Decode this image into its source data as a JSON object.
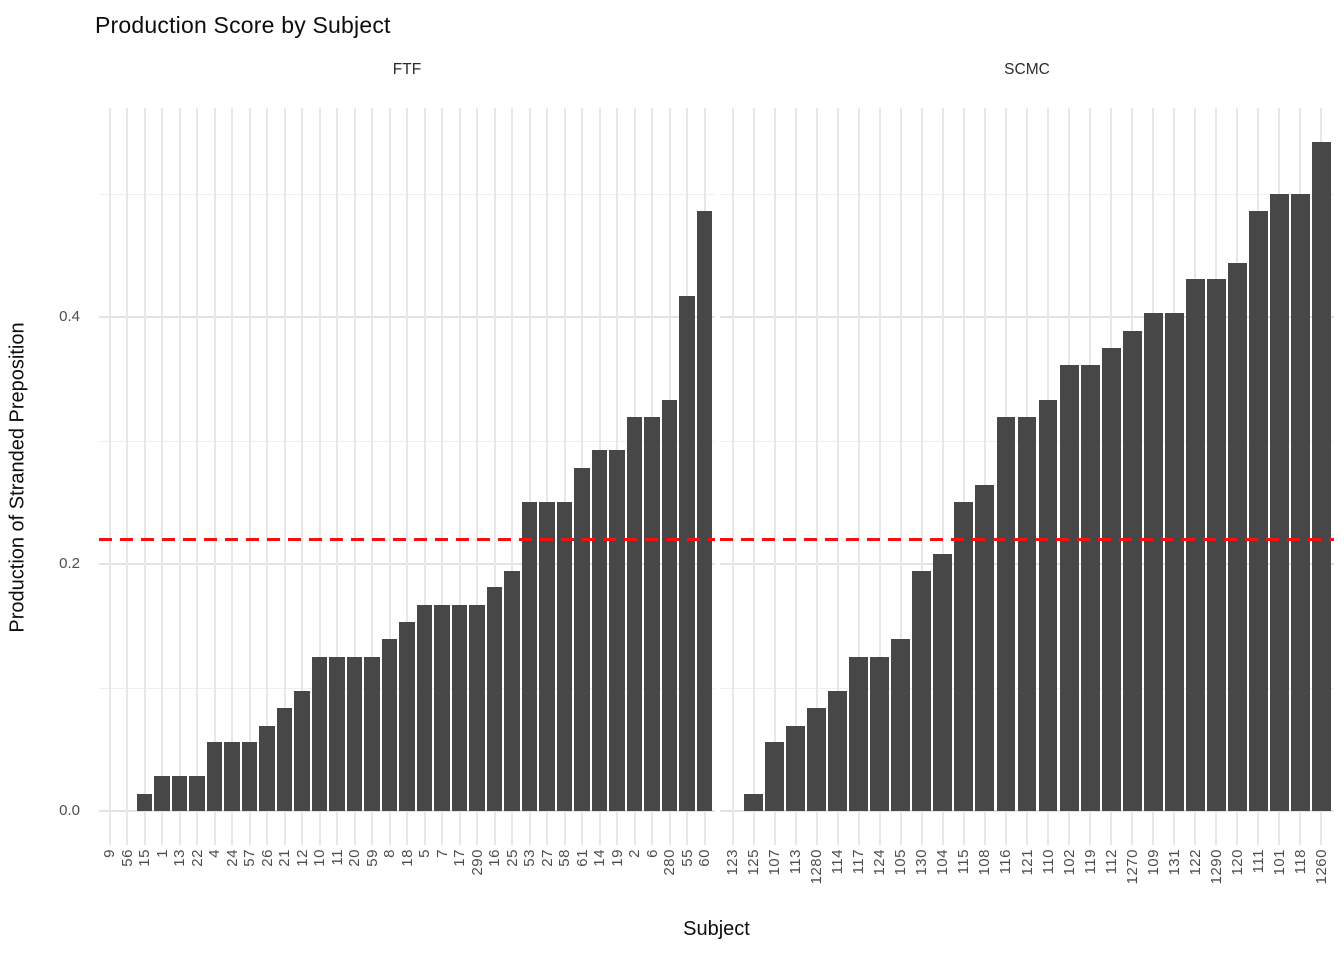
{
  "title": "Production Score by Subject",
  "x_axis_title": "Subject",
  "y_axis_title": "Production of Stranded Preposition",
  "y_ticks": [
    {
      "value": 0.0,
      "label": "0.0"
    },
    {
      "value": 0.2,
      "label": "0.2"
    },
    {
      "value": 0.4,
      "label": "0.4"
    }
  ],
  "reference_line": {
    "value": 0.22,
    "color": "#ff0000",
    "style": "dashed"
  },
  "bar_color": "#474747",
  "gridline_color": "#e7e7e7",
  "chart_data": {
    "type": "bar",
    "title": "Production Score by Subject",
    "xlabel": "Subject",
    "ylabel": "Production of Stranded Preposition",
    "ylim": [
      -0.027,
      0.569
    ],
    "grid": true,
    "sorted": "ascending within facet",
    "y_major_gridlines": [
      0.0,
      0.2,
      0.4
    ],
    "y_minor_gridlines": [
      0.1,
      0.3,
      0.5
    ],
    "reference_line_y": 0.22,
    "facets": [
      {
        "label": "FTF",
        "categories": [
          "9",
          "56",
          "15",
          "1",
          "13",
          "22",
          "4",
          "24",
          "57",
          "26",
          "21",
          "12",
          "10",
          "11",
          "20",
          "59",
          "8",
          "18",
          "5",
          "7",
          "17",
          "290",
          "16",
          "25",
          "53",
          "27",
          "58",
          "61",
          "14",
          "19",
          "2",
          "6",
          "280",
          "55",
          "60"
        ],
        "values": [
          0,
          0,
          0.014,
          0.028,
          0.028,
          0.028,
          0.056,
          0.056,
          0.056,
          0.069,
          0.083,
          0.097,
          0.125,
          0.125,
          0.125,
          0.125,
          0.139,
          0.153,
          0.167,
          0.167,
          0.167,
          0.167,
          0.181,
          0.194,
          0.25,
          0.25,
          0.25,
          0.278,
          0.292,
          0.292,
          0.319,
          0.319,
          0.333,
          0.417,
          0.486
        ]
      },
      {
        "label": "SCMC",
        "categories": [
          "123",
          "125",
          "107",
          "113",
          "1280",
          "114",
          "117",
          "124",
          "105",
          "130",
          "104",
          "115",
          "108",
          "116",
          "121",
          "110",
          "102",
          "119",
          "112",
          "1270",
          "109",
          "131",
          "122",
          "1290",
          "120",
          "111",
          "101",
          "118",
          "1260"
        ],
        "values": [
          0,
          0.014,
          0.056,
          0.069,
          0.083,
          0.097,
          0.125,
          0.125,
          0.139,
          0.194,
          0.208,
          0.25,
          0.264,
          0.319,
          0.319,
          0.333,
          0.361,
          0.361,
          0.375,
          0.389,
          0.403,
          0.403,
          0.431,
          0.431,
          0.444,
          0.486,
          0.5,
          0.5,
          0.542
        ]
      }
    ]
  }
}
